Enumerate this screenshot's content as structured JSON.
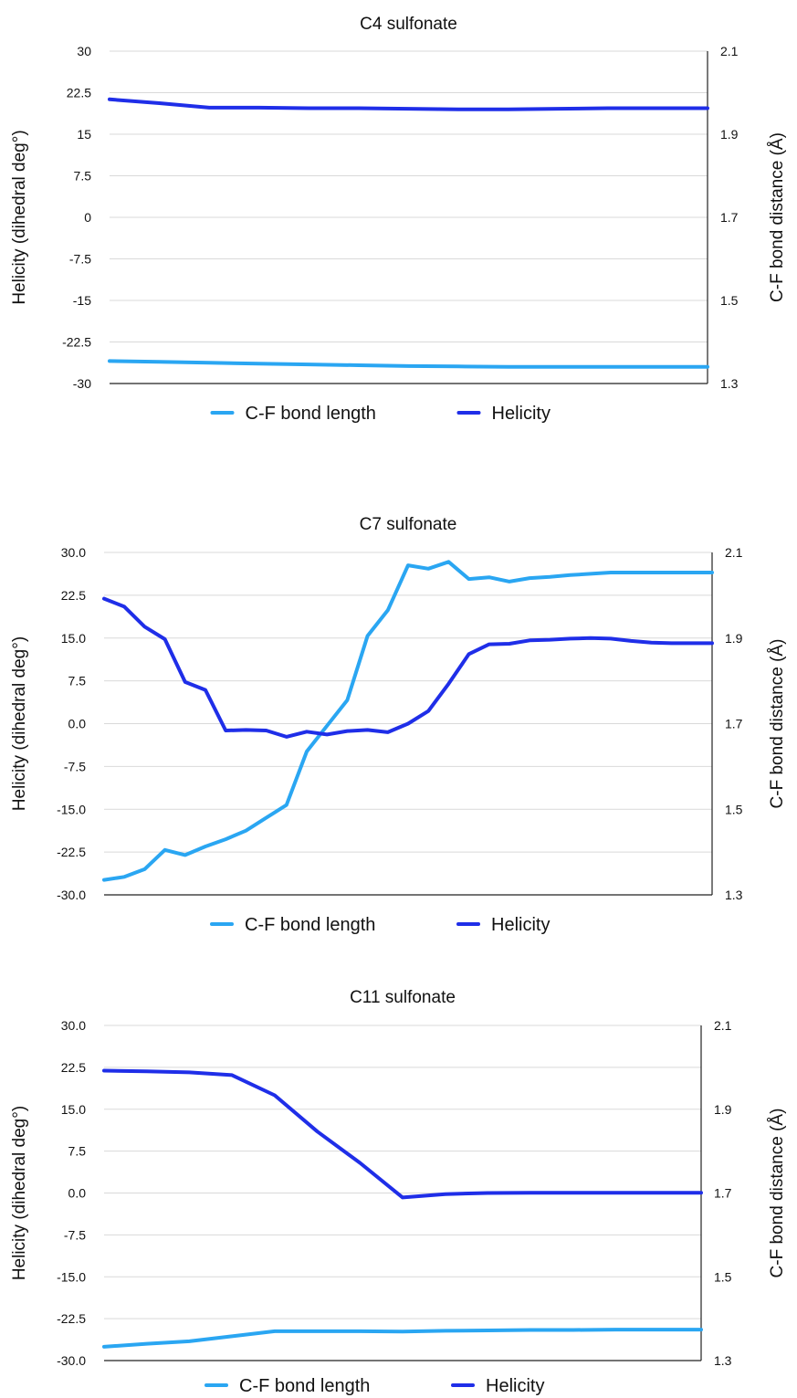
{
  "colors": {
    "cf_bond_length": "#2aa6f2",
    "helicity": "#1f2ee8",
    "grid": "#d9d9d9",
    "axis": "#222222"
  },
  "chart_data": [
    {
      "type": "line",
      "title": "C4 sulfonate",
      "ylabel": "Helicity (dihedral deg°)",
      "y2label": "C-F bond distance (Å)",
      "ylim": [
        -30,
        30
      ],
      "y2lim": [
        1.3,
        2.1
      ],
      "yticks": [
        "30",
        "22.5",
        "15",
        "7.5",
        "0",
        "-7.5",
        "-15",
        "-22.5",
        "-30"
      ],
      "y2ticks": [
        "2.1",
        "1.9",
        "1.7",
        "1.5",
        "1.3"
      ],
      "grid": true,
      "legend": "bottom",
      "legend_labels": [
        "C-F bond length",
        "Helicity"
      ],
      "series": [
        {
          "name": "C-F bond length",
          "axis": "right",
          "values": [
            1.354,
            1.352,
            1.35,
            1.348,
            1.346,
            1.344,
            1.342,
            1.341,
            1.34,
            1.34,
            1.34,
            1.34,
            1.34
          ]
        },
        {
          "name": "Helicity",
          "axis": "left",
          "values": [
            21.3,
            20.6,
            19.8,
            19.8,
            19.7,
            19.7,
            19.6,
            19.5,
            19.5,
            19.6,
            19.7,
            19.7,
            19.7
          ]
        }
      ]
    },
    {
      "type": "line",
      "title": "C7 sulfonate",
      "ylabel": "Helicity (dihedral deg°)",
      "y2label": "C-F bond distance (Å)",
      "ylim": [
        -30,
        30
      ],
      "y2lim": [
        1.3,
        2.1
      ],
      "yticks": [
        "30.0",
        "22.5",
        "15.0",
        "7.5",
        "0.0",
        "-7.5",
        "-15.0",
        "-22.5",
        "-30.0"
      ],
      "y2ticks": [
        "2.1",
        "1.9",
        "1.7",
        "1.5",
        "1.3"
      ],
      "grid": true,
      "legend": "bottom",
      "legend_labels": [
        "C-F bond length",
        "Helicity"
      ],
      "series": [
        {
          "name": "C-F bond length",
          "axis": "right",
          "values": [
            1.335,
            1.342,
            1.36,
            1.405,
            1.393,
            1.413,
            1.43,
            1.45,
            1.48,
            1.51,
            1.635,
            1.695,
            1.755,
            1.905,
            1.965,
            2.07,
            2.062,
            2.078,
            2.038,
            2.042,
            2.032,
            2.04,
            2.043,
            2.047,
            2.05,
            2.053,
            2.053,
            2.053,
            2.053,
            2.053,
            2.053
          ]
        },
        {
          "name": "Helicity",
          "axis": "left",
          "values": [
            21.9,
            20.5,
            17.0,
            14.8,
            7.3,
            5.9,
            -1.2,
            -1.1,
            -1.2,
            -2.3,
            -1.4,
            -1.9,
            -1.3,
            -1.1,
            -1.5,
            0.0,
            2.2,
            7.0,
            12.2,
            13.9,
            14.0,
            14.6,
            14.7,
            14.9,
            15.0,
            14.9,
            14.5,
            14.2,
            14.1,
            14.1,
            14.1
          ]
        }
      ]
    },
    {
      "type": "line",
      "title": "C11 sulfonate",
      "ylabel": "Helicity (dihedral deg°)",
      "y2label": "C-F bond distance (Å)",
      "ylim": [
        -30,
        30
      ],
      "y2lim": [
        1.3,
        2.1
      ],
      "yticks": [
        "30.0",
        "22.5",
        "15.0",
        "7.5",
        "0.0",
        "-7.5",
        "-15.0",
        "-22.5",
        "-30.0"
      ],
      "y2ticks": [
        "2.1",
        "1.9",
        "1.7",
        "1.5",
        "1.3"
      ],
      "grid": true,
      "legend": "bottom",
      "legend_labels": [
        "C-F bond length",
        "Helicity"
      ],
      "series": [
        {
          "name": "C-F bond length",
          "axis": "right",
          "values": [
            1.333,
            1.34,
            1.346,
            1.358,
            1.37,
            1.37,
            1.37,
            1.369,
            1.371,
            1.372,
            1.373,
            1.373,
            1.374,
            1.374,
            1.374
          ]
        },
        {
          "name": "Helicity",
          "axis": "left",
          "values": [
            21.9,
            21.8,
            21.6,
            21.1,
            17.5,
            11.0,
            5.4,
            -0.8,
            -0.2,
            0.0,
            0.05,
            0.05,
            0.05,
            0.05,
            0.05
          ]
        }
      ]
    }
  ]
}
